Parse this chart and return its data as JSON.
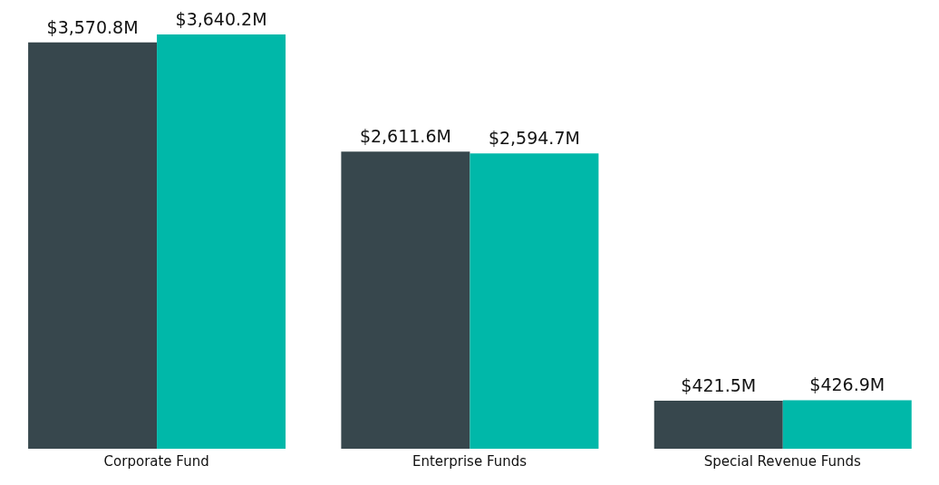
{
  "chart_data": {
    "type": "bar",
    "categories": [
      "Corporate Fund",
      "Enterprise Funds",
      "Special Revenue Funds"
    ],
    "series": [
      {
        "color": "#37474d",
        "values": [
          3570.8,
          2611.6,
          421.5
        ],
        "value_labels": [
          "$3,570.8M",
          "$2,611.6M",
          "$421.5M"
        ]
      },
      {
        "color": "#00b8a9",
        "values": [
          3640.2,
          2594.7,
          426.9
        ],
        "value_labels": [
          "$3,640.2M",
          "$2,594.7M",
          "$426.9M"
        ]
      }
    ],
    "grid": false,
    "legend": false
  }
}
